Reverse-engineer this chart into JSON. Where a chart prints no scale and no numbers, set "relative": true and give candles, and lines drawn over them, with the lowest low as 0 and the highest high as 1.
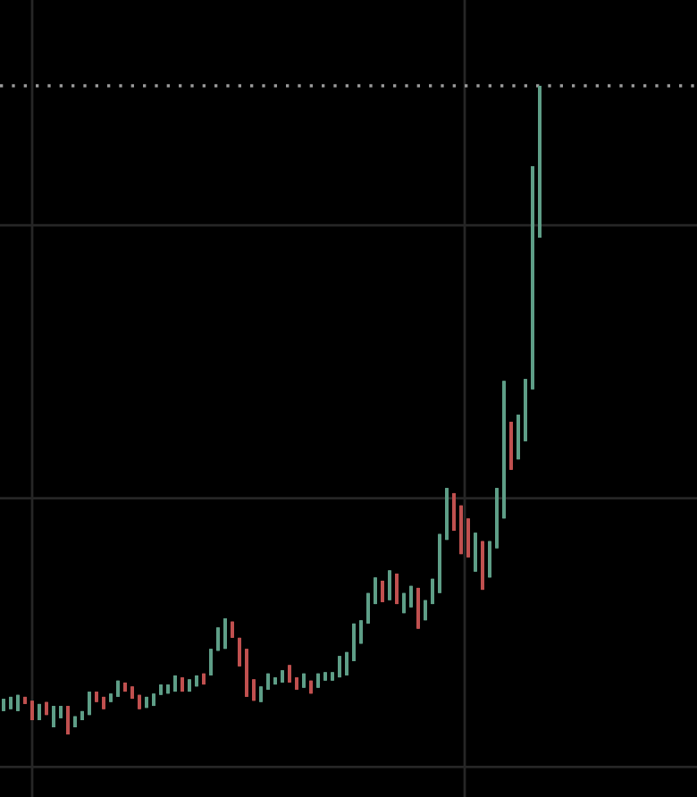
{
  "chart_data": {
    "type": "candlestick",
    "relative": true,
    "grid": true,
    "colors": [
      "#5e9e87",
      "#5e9e87",
      "#5e9e87",
      "#c0504f",
      "#c0504f",
      "#5e9e87",
      "#c0504f",
      "#5e9e87",
      "#5e9e87",
      "#c0504f",
      "#5e9e87",
      "#5e9e87",
      "#5e9e87",
      "#c0504f",
      "#c0504f",
      "#5e9e87",
      "#5e9e87",
      "#c0504f",
      "#c0504f",
      "#c0504f",
      "#5e9e87",
      "#5e9e87",
      "#5e9e87",
      "#5e9e87",
      "#5e9e87",
      "#c0504f",
      "#5e9e87",
      "#5e9e87",
      "#c0504f",
      "#5e9e87",
      "#5e9e87",
      "#5e9e87",
      "#c0504f",
      "#c0504f",
      "#c0504f",
      "#c0504f",
      "#5e9e87",
      "#5e9e87",
      "#5e9e87",
      "#5e9e87",
      "#c0504f",
      "#c0504f",
      "#5e9e87",
      "#c0504f",
      "#5e9e87",
      "#5e9e87",
      "#5e9e87",
      "#5e9e87",
      "#5e9e87",
      "#5e9e87",
      "#5e9e87",
      "#5e9e87",
      "#5e9e87",
      "#c0504f",
      "#5e9e87",
      "#c0504f",
      "#5e9e87",
      "#5e9e87",
      "#c0504f",
      "#5e9e87",
      "#5e9e87",
      "#5e9e87",
      "#5e9e87",
      "#c0504f",
      "#c0504f",
      "#c0504f",
      "#5e9e87",
      "#c0504f",
      "#5e9e87",
      "#5e9e87",
      "#5e9e87",
      "#c0504f",
      "#5e9e87",
      "#5e9e87",
      "#5e9e87",
      "#5e9e87"
    ],
    "ref_lines": [
      {
        "axis": "y",
        "value": 1,
        "color": "#9a9a9a",
        "line_style": "dotted"
      }
    ],
    "categories": [
      null,
      null,
      null,
      null,
      null,
      null,
      null,
      null,
      null,
      null,
      null,
      null,
      null,
      null,
      null,
      null,
      null,
      null,
      null,
      null,
      null,
      null,
      null,
      null,
      null,
      null,
      null,
      null,
      null,
      null,
      null,
      null,
      null,
      null,
      null,
      null,
      null,
      null,
      null,
      null,
      null,
      null,
      null,
      null,
      null,
      null,
      null,
      null,
      null,
      null,
      null,
      null,
      null,
      null,
      null,
      null,
      null,
      null,
      null,
      null,
      null,
      null,
      null,
      null,
      null,
      null,
      null,
      null,
      null,
      null,
      null,
      null,
      null,
      null,
      null,
      null
    ],
    "ohlc": [
      [
        0.036,
        0.055,
        0.036,
        0.055
      ],
      [
        0.039,
        0.058,
        0.039,
        0.058
      ],
      [
        0.036,
        0.061,
        0.036,
        0.061
      ],
      [
        0.058,
        0.058,
        0.047,
        0.047
      ],
      [
        0.052,
        0.052,
        0.022,
        0.022
      ],
      [
        0.022,
        0.047,
        0.022,
        0.047
      ],
      [
        0.05,
        0.05,
        0.03,
        0.03
      ],
      [
        0.011,
        0.044,
        0.011,
        0.044
      ],
      [
        0.025,
        0.044,
        0.025,
        0.044
      ],
      [
        0.044,
        0.044,
        0,
        0
      ],
      [
        0.011,
        0.028,
        0.011,
        0.028
      ],
      [
        0.022,
        0.036,
        0.022,
        0.036
      ],
      [
        0.03,
        0.066,
        0.03,
        0.066
      ],
      [
        0.066,
        0.066,
        0.05,
        0.05
      ],
      [
        0.058,
        0.058,
        0.039,
        0.039
      ],
      [
        0.05,
        0.063,
        0.05,
        0.063
      ],
      [
        0.058,
        0.083,
        0.058,
        0.083
      ],
      [
        0.08,
        0.08,
        0.066,
        0.066
      ],
      [
        0.074,
        0.074,
        0.055,
        0.055
      ],
      [
        0.061,
        0.061,
        0.039,
        0.039
      ],
      [
        0.041,
        0.058,
        0.041,
        0.058
      ],
      [
        0.044,
        0.063,
        0.044,
        0.063
      ],
      [
        0.061,
        0.077,
        0.061,
        0.077
      ],
      [
        0.063,
        0.077,
        0.063,
        0.077
      ],
      [
        0.066,
        0.091,
        0.066,
        0.091
      ],
      [
        0.088,
        0.088,
        0.066,
        0.066
      ],
      [
        0.066,
        0.085,
        0.066,
        0.085
      ],
      [
        0.074,
        0.091,
        0.074,
        0.091
      ],
      [
        0.094,
        0.094,
        0.077,
        0.077
      ],
      [
        0.091,
        0.132,
        0.091,
        0.132
      ],
      [
        0.129,
        0.165,
        0.129,
        0.165
      ],
      [
        0.132,
        0.179,
        0.132,
        0.179
      ],
      [
        0.174,
        0.174,
        0.149,
        0.149
      ],
      [
        0.149,
        0.149,
        0.105,
        0.105
      ],
      [
        0.132,
        0.132,
        0.058,
        0.058
      ],
      [
        0.085,
        0.085,
        0.052,
        0.052
      ],
      [
        0.05,
        0.074,
        0.05,
        0.074
      ],
      [
        0.069,
        0.094,
        0.069,
        0.094
      ],
      [
        0.077,
        0.088,
        0.077,
        0.088
      ],
      [
        0.08,
        0.099,
        0.08,
        0.099
      ],
      [
        0.107,
        0.107,
        0.08,
        0.08
      ],
      [
        0.088,
        0.088,
        0.069,
        0.069
      ],
      [
        0.072,
        0.094,
        0.072,
        0.094
      ],
      [
        0.083,
        0.083,
        0.063,
        0.063
      ],
      [
        0.072,
        0.094,
        0.072,
        0.094
      ],
      [
        0.083,
        0.096,
        0.083,
        0.096
      ],
      [
        0.083,
        0.096,
        0.083,
        0.096
      ],
      [
        0.088,
        0.121,
        0.088,
        0.121
      ],
      [
        0.091,
        0.127,
        0.091,
        0.127
      ],
      [
        0.113,
        0.171,
        0.113,
        0.171
      ],
      [
        0.14,
        0.176,
        0.14,
        0.176
      ],
      [
        0.171,
        0.218,
        0.171,
        0.218
      ],
      [
        0.201,
        0.242,
        0.201,
        0.242
      ],
      [
        0.237,
        0.237,
        0.204,
        0.204
      ],
      [
        0.207,
        0.253,
        0.207,
        0.253
      ],
      [
        0.248,
        0.248,
        0.201,
        0.201
      ],
      [
        0.187,
        0.218,
        0.187,
        0.218
      ],
      [
        0.196,
        0.229,
        0.196,
        0.229
      ],
      [
        0.226,
        0.226,
        0.163,
        0.163
      ],
      [
        0.176,
        0.207,
        0.176,
        0.207
      ],
      [
        0.201,
        0.24,
        0.201,
        0.24
      ],
      [
        0.218,
        0.309,
        0.218,
        0.309
      ],
      [
        0.3,
        0.38,
        0.3,
        0.38
      ],
      [
        0.372,
        0.372,
        0.314,
        0.314
      ],
      [
        0.353,
        0.353,
        0.278,
        0.278
      ],
      [
        0.333,
        0.333,
        0.273,
        0.273
      ],
      [
        0.251,
        0.311,
        0.251,
        0.311
      ],
      [
        0.298,
        0.298,
        0.223,
        0.223
      ],
      [
        0.242,
        0.298,
        0.242,
        0.298
      ],
      [
        0.287,
        0.38,
        0.287,
        0.38
      ],
      [
        0.333,
        0.545,
        0.333,
        0.545
      ],
      [
        0.482,
        0.482,
        0.408,
        0.408
      ],
      [
        0.424,
        0.493,
        0.424,
        0.493
      ],
      [
        0.452,
        0.548,
        0.452,
        0.548
      ],
      [
        0.532,
        0.876,
        0.532,
        0.876
      ],
      [
        0.766,
        1,
        0.766,
        1
      ]
    ]
  }
}
